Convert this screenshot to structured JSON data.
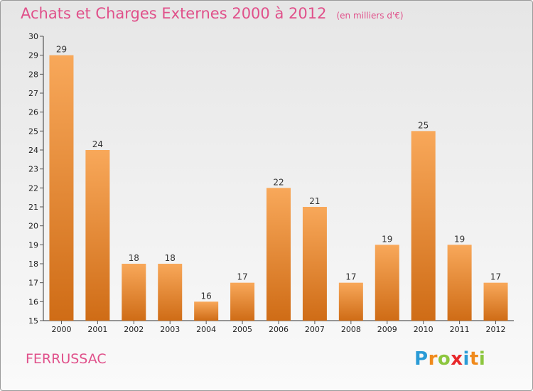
{
  "header": {
    "title": "Achats et Charges Externes 2000 à 2012",
    "subtitle": "(en milliers d'€)"
  },
  "footer": {
    "town": "FERRUSSAC",
    "logo": {
      "letters": [
        "P",
        "r",
        "o",
        "x",
        "i",
        "t",
        "i"
      ],
      "colors": [
        "#2a9bd6",
        "#f08a1c",
        "#8cc63e",
        "#e8272a",
        "#2a9bd6",
        "#f08a1c",
        "#8cc63e"
      ]
    }
  },
  "colors": {
    "bar_top": "#f8a85a",
    "bar_bottom": "#cf6c16",
    "axis": "#333333",
    "grid_tick": "#555555",
    "title": "#e0508a"
  },
  "chart_data": {
    "type": "bar",
    "categories": [
      "2000",
      "2001",
      "2002",
      "2003",
      "2004",
      "2005",
      "2006",
      "2007",
      "2008",
      "2009",
      "2010",
      "2011",
      "2012"
    ],
    "values": [
      29,
      24,
      18,
      18,
      16,
      17,
      22,
      21,
      17,
      19,
      25,
      19,
      17
    ],
    "title": "Achats et Charges Externes 2000 à 2012",
    "subtitle": "(en milliers d'€)",
    "xlabel": "",
    "ylabel": "",
    "ylim": [
      15,
      30
    ],
    "yticks": [
      15,
      16,
      17,
      18,
      19,
      20,
      21,
      22,
      23,
      24,
      25,
      26,
      27,
      28,
      29,
      30
    ],
    "grid": false,
    "data_labels": true
  }
}
